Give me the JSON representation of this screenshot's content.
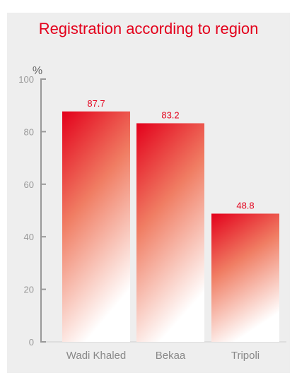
{
  "chart_data": {
    "type": "bar",
    "title": "Registration according to region",
    "ylabel": "%",
    "xlabel": "",
    "categories": [
      "Wadi Khaled",
      "Bekaa",
      "Tripoli"
    ],
    "values": [
      87.7,
      83.2,
      48.8
    ],
    "value_labels": [
      "87.7",
      "83.2",
      "48.8"
    ],
    "ylim": [
      0,
      100
    ],
    "yticks": [
      0,
      20,
      40,
      60,
      80,
      100
    ],
    "grid": false,
    "legend": "none",
    "colors": {
      "bar_top": "#e3001b",
      "bar_bottom": "#ffffff",
      "title": "#e3001b",
      "value_label": "#e3001b",
      "axis": "#999999",
      "background": "#eeeeee"
    }
  }
}
